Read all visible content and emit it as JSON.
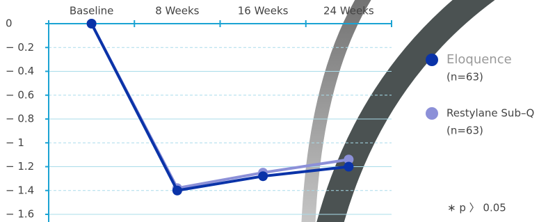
{
  "chart_data": {
    "type": "line",
    "categories": [
      "Baseline",
      "8 Weeks",
      "16 Weeks",
      "24 Weeks"
    ],
    "series": [
      {
        "name": "Eloquence",
        "note": "(n=63)",
        "color": "#0a33a8",
        "values": [
          0,
          -1.4,
          -1.28,
          -1.2
        ]
      },
      {
        "name": "Restylane Sub–Q",
        "note": "(n=63)",
        "color": "#8c90d8",
        "values": [
          0,
          -1.38,
          -1.25,
          -1.14
        ]
      }
    ],
    "ylim": [
      -1.6,
      0
    ],
    "yticks": [
      0,
      {
        "value": -0.2,
        "label": "− 0.2"
      },
      {
        "value": -0.4,
        "label": "− 0.4"
      },
      {
        "value": -0.6,
        "label": "− 0.6"
      },
      {
        "value": -0.8,
        "label": "− 0.8"
      },
      {
        "value": -1,
        "label": "− 1"
      },
      {
        "value": -1.2,
        "label": "− 1.2"
      },
      {
        "value": -1.4,
        "label": "− 1.4"
      },
      {
        "value": -1.6,
        "label": "− 1.6"
      }
    ],
    "grid": true,
    "annotation": "∗ p 〉 0.05"
  }
}
